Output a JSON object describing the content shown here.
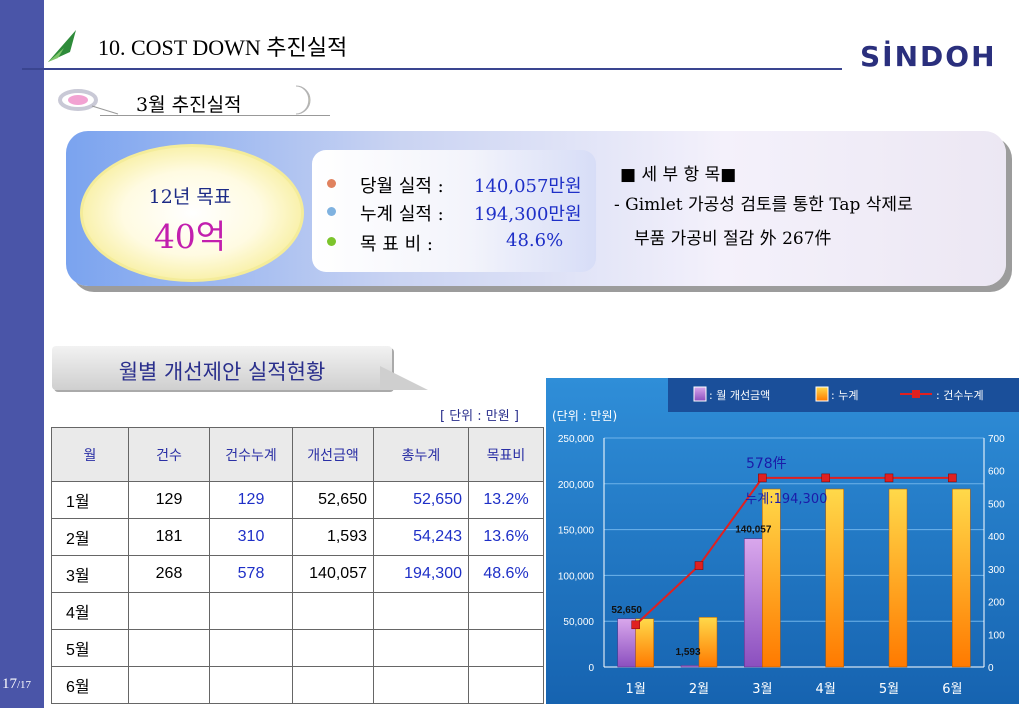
{
  "page": {
    "number": "17",
    "total": "/17"
  },
  "header": {
    "title": "10. COST DOWN 추진실적",
    "logo": "SİNDOH"
  },
  "section": {
    "subtitle": "3월 추진실적"
  },
  "goal": {
    "label": "12년 목표",
    "value": "40억"
  },
  "stats": [
    {
      "label": "당월 실적 :",
      "value": "140,057만원"
    },
    {
      "label": "누계 실적 :",
      "value": "194,300만원"
    },
    {
      "label": "목  표  비 :",
      "value": "48.6%"
    }
  ],
  "details": {
    "heading": "■ 세 부 항 목■",
    "line1": "- Gimlet 가공성 검토를 통한 Tap 삭제로",
    "line2": "부품 가공비 절감  外  267件"
  },
  "table_section": {
    "banner": "월별 개선제안 실적현황",
    "unit": "[ 단위 : 만원 ]"
  },
  "table": {
    "headers": [
      "월",
      "건수",
      "건수누계",
      "개선금액",
      "총누계",
      "목표비"
    ],
    "rows": [
      [
        "1월",
        "129",
        "129",
        "52,650",
        "52,650",
        "13.2%"
      ],
      [
        "2월",
        "181",
        "310",
        "1,593",
        "54,243",
        "13.6%"
      ],
      [
        "3월",
        "268",
        "578",
        "140,057",
        "194,300",
        "48.6%"
      ],
      [
        "4월",
        "",
        "",
        "",
        "",
        ""
      ],
      [
        "5월",
        "",
        "",
        "",
        "",
        ""
      ],
      [
        "6월",
        "",
        "",
        "",
        "",
        ""
      ]
    ]
  },
  "chart_data": {
    "type": "bar",
    "unit_label": "(단위 : 만원)",
    "categories": [
      "1월",
      "2월",
      "3월",
      "4월",
      "5월",
      "6월"
    ],
    "series": [
      {
        "name": ": 월 개선금액",
        "kind": "bar",
        "axis": "left",
        "color": "#b27fd8",
        "values": [
          52650,
          1593,
          140057,
          null,
          null,
          null
        ]
      },
      {
        "name": ": 누계",
        "kind": "bar",
        "axis": "left",
        "color": "#ffb000",
        "values": [
          52650,
          54243,
          194300,
          194300,
          194300,
          194300
        ]
      },
      {
        "name": ": 건수누계",
        "kind": "line",
        "axis": "right",
        "color": "#e02020",
        "values": [
          129,
          310,
          578,
          578,
          578,
          578
        ]
      }
    ],
    "y_left": {
      "min": 0,
      "max": 250000,
      "ticks": [
        "0",
        "50,000",
        "100,000",
        "150,000",
        "200,000",
        "250,000"
      ]
    },
    "y_right": {
      "min": 0,
      "max": 700,
      "ticks": [
        "0",
        "100",
        "200",
        "300",
        "400",
        "500",
        "600",
        "700"
      ]
    },
    "data_labels": [
      "52,650",
      "1,593",
      "140,057"
    ],
    "annotations": [
      "578件",
      "누계:194,300"
    ],
    "legend_position": "top"
  },
  "colors": {
    "accent": "#4a55a8",
    "chart_bg": "#1b79c6",
    "value_blue": "#1e2fc7",
    "goal_magenta": "#c21fae"
  }
}
